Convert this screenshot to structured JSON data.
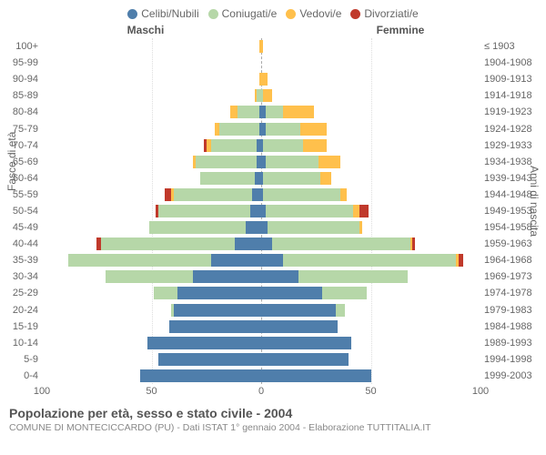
{
  "legend": [
    {
      "label": "Celibi/Nubili",
      "color": "#4f7eab"
    },
    {
      "label": "Coniugati/e",
      "color": "#b6d7a8"
    },
    {
      "label": "Vedovi/e",
      "color": "#ffc04c"
    },
    {
      "label": "Divorziati/e",
      "color": "#c0392b"
    }
  ],
  "headers": {
    "male": "Maschi",
    "female": "Femmine"
  },
  "y_left_label": "Fasce di età",
  "y_right_label": "Anni di nascita",
  "footer": {
    "title": "Popolazione per età, sesso e stato civile - 2004",
    "subtitle": "COMUNE DI MONTECICCARDO (PU) - Dati ISTAT 1° gennaio 2004 - Elaborazione TUTTITALIA.IT"
  },
  "x_axis": {
    "max": 100,
    "ticks": [
      100,
      50,
      0,
      50,
      100
    ]
  },
  "colors": {
    "background": "#ffffff",
    "grid": "#dddddd",
    "centerline": "#aaaaaa",
    "text": "#666666"
  },
  "rows": [
    {
      "age": "100+",
      "birth": "≤ 1903",
      "m": {
        "cel": 0,
        "con": 0,
        "ved": 1,
        "div": 0
      },
      "f": {
        "cel": 0,
        "con": 0,
        "ved": 1,
        "div": 0
      }
    },
    {
      "age": "95-99",
      "birth": "1904-1908",
      "m": {
        "cel": 0,
        "con": 0,
        "ved": 0,
        "div": 0
      },
      "f": {
        "cel": 0,
        "con": 0,
        "ved": 0,
        "div": 0
      }
    },
    {
      "age": "90-94",
      "birth": "1909-1913",
      "m": {
        "cel": 0,
        "con": 0,
        "ved": 1,
        "div": 0
      },
      "f": {
        "cel": 0,
        "con": 0,
        "ved": 3,
        "div": 0
      }
    },
    {
      "age": "85-89",
      "birth": "1914-1918",
      "m": {
        "cel": 0,
        "con": 2,
        "ved": 1,
        "div": 0
      },
      "f": {
        "cel": 0,
        "con": 1,
        "ved": 4,
        "div": 0
      }
    },
    {
      "age": "80-84",
      "birth": "1919-1923",
      "m": {
        "cel": 1,
        "con": 10,
        "ved": 3,
        "div": 0
      },
      "f": {
        "cel": 2,
        "con": 8,
        "ved": 14,
        "div": 0
      }
    },
    {
      "age": "75-79",
      "birth": "1924-1928",
      "m": {
        "cel": 1,
        "con": 18,
        "ved": 2,
        "div": 0
      },
      "f": {
        "cel": 2,
        "con": 16,
        "ved": 12,
        "div": 0
      }
    },
    {
      "age": "70-74",
      "birth": "1929-1933",
      "m": {
        "cel": 2,
        "con": 21,
        "ved": 2,
        "div": 1
      },
      "f": {
        "cel": 1,
        "con": 18,
        "ved": 11,
        "div": 0
      }
    },
    {
      "age": "65-69",
      "birth": "1934-1938",
      "m": {
        "cel": 2,
        "con": 28,
        "ved": 1,
        "div": 0
      },
      "f": {
        "cel": 2,
        "con": 24,
        "ved": 10,
        "div": 0
      }
    },
    {
      "age": "60-64",
      "birth": "1939-1943",
      "m": {
        "cel": 3,
        "con": 25,
        "ved": 0,
        "div": 0
      },
      "f": {
        "cel": 1,
        "con": 26,
        "ved": 5,
        "div": 0
      }
    },
    {
      "age": "55-59",
      "birth": "1944-1948",
      "m": {
        "cel": 4,
        "con": 36,
        "ved": 1,
        "div": 3
      },
      "f": {
        "cel": 1,
        "con": 35,
        "ved": 3,
        "div": 0
      }
    },
    {
      "age": "50-54",
      "birth": "1949-1953",
      "m": {
        "cel": 5,
        "con": 42,
        "ved": 0,
        "div": 1
      },
      "f": {
        "cel": 2,
        "con": 40,
        "ved": 3,
        "div": 4
      }
    },
    {
      "age": "45-49",
      "birth": "1954-1958",
      "m": {
        "cel": 7,
        "con": 44,
        "ved": 0,
        "div": 0
      },
      "f": {
        "cel": 3,
        "con": 42,
        "ved": 1,
        "div": 0
      }
    },
    {
      "age": "40-44",
      "birth": "1959-1963",
      "m": {
        "cel": 12,
        "con": 61,
        "ved": 0,
        "div": 2
      },
      "f": {
        "cel": 5,
        "con": 63,
        "ved": 1,
        "div": 1
      }
    },
    {
      "age": "35-39",
      "birth": "1964-1968",
      "m": {
        "cel": 23,
        "con": 65,
        "ved": 0,
        "div": 0
      },
      "f": {
        "cel": 10,
        "con": 79,
        "ved": 1,
        "div": 2
      }
    },
    {
      "age": "30-34",
      "birth": "1969-1973",
      "m": {
        "cel": 31,
        "con": 40,
        "ved": 0,
        "div": 0
      },
      "f": {
        "cel": 17,
        "con": 50,
        "ved": 0,
        "div": 0
      }
    },
    {
      "age": "25-29",
      "birth": "1974-1978",
      "m": {
        "cel": 38,
        "con": 11,
        "ved": 0,
        "div": 0
      },
      "f": {
        "cel": 28,
        "con": 20,
        "ved": 0,
        "div": 0
      }
    },
    {
      "age": "20-24",
      "birth": "1979-1983",
      "m": {
        "cel": 40,
        "con": 1,
        "ved": 0,
        "div": 0
      },
      "f": {
        "cel": 34,
        "con": 4,
        "ved": 0,
        "div": 0
      }
    },
    {
      "age": "15-19",
      "birth": "1984-1988",
      "m": {
        "cel": 42,
        "con": 0,
        "ved": 0,
        "div": 0
      },
      "f": {
        "cel": 35,
        "con": 0,
        "ved": 0,
        "div": 0
      }
    },
    {
      "age": "10-14",
      "birth": "1989-1993",
      "m": {
        "cel": 52,
        "con": 0,
        "ved": 0,
        "div": 0
      },
      "f": {
        "cel": 41,
        "con": 0,
        "ved": 0,
        "div": 0
      }
    },
    {
      "age": "5-9",
      "birth": "1994-1998",
      "m": {
        "cel": 47,
        "con": 0,
        "ved": 0,
        "div": 0
      },
      "f": {
        "cel": 40,
        "con": 0,
        "ved": 0,
        "div": 0
      }
    },
    {
      "age": "0-4",
      "birth": "1999-2003",
      "m": {
        "cel": 55,
        "con": 0,
        "ved": 0,
        "div": 0
      },
      "f": {
        "cel": 50,
        "con": 0,
        "ved": 0,
        "div": 0
      }
    }
  ]
}
